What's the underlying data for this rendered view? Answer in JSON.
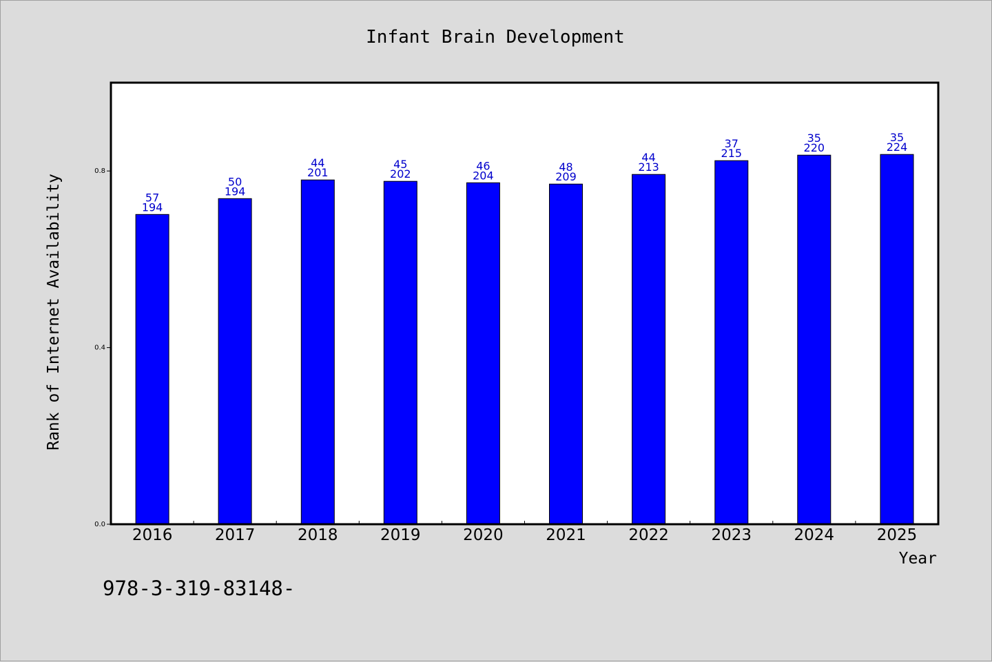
{
  "chart_data": {
    "type": "bar",
    "title": "Infant Brain Development",
    "xlabel": "Year",
    "ylabel": "Rank of Internet Availability",
    "categories": [
      "2016",
      "2017",
      "2018",
      "2019",
      "2020",
      "2021",
      "2022",
      "2023",
      "2024",
      "2025"
    ],
    "values": [
      0.7016,
      0.7375,
      0.7797,
      0.7766,
      0.7734,
      0.7703,
      0.7922,
      0.8234,
      0.8359,
      0.8375
    ],
    "labels_top": [
      "57",
      "50",
      "44",
      "45",
      "46",
      "48",
      "44",
      "37",
      "35",
      "35"
    ],
    "labels_bottom": [
      "194",
      "194",
      "201",
      "202",
      "204",
      "209",
      "213",
      "215",
      "220",
      "224"
    ],
    "ylim": [
      0.0,
      1.0
    ],
    "yticks": [
      0.0,
      0.4,
      0.8
    ],
    "ytick_labels": [
      "0.0",
      "0.4",
      "0.8"
    ],
    "grid": false,
    "bar_color": "#0000ff",
    "label_color": "#0000cc",
    "background_color": "#dcdcdc",
    "plot_background": "#ffffff"
  },
  "footer": {
    "text": "978-3-319-83148-"
  }
}
